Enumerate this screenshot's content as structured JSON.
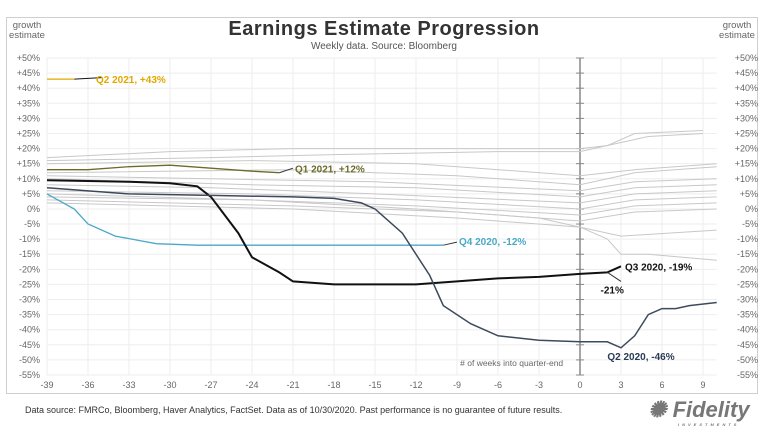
{
  "chart_data": {
    "type": "line",
    "title": "Earnings Estimate Progression",
    "subtitle": "Weekly data.  Source: Bloomberg",
    "ylabel": "growth estimate",
    "xlabel": "# of weeks into quarter-end",
    "xlim": [
      -39,
      10
    ],
    "ylim": [
      -55,
      50
    ],
    "xticks": [
      -39,
      -36,
      -33,
      -30,
      -27,
      -24,
      -21,
      -18,
      -15,
      -12,
      -9,
      -6,
      -3,
      0,
      3,
      6,
      9
    ],
    "yticks": [
      50,
      45,
      40,
      35,
      30,
      25,
      20,
      15,
      10,
      5,
      0,
      -5,
      -10,
      -15,
      -20,
      -25,
      -30,
      -35,
      -40,
      -45,
      -50,
      -55
    ],
    "grid": true,
    "colors": {
      "q2_2021": "#e0a800",
      "q1_2021": "#6b6b2a",
      "q4_2020": "#4aa8c8",
      "q3_2020": "#111111",
      "q2_2020": "#3d4a5c",
      "history": "#c8c8c8"
    },
    "history_series": [
      [
        [
          -39,
          17
        ],
        [
          -30,
          19
        ],
        [
          -21,
          20
        ],
        [
          -12,
          20
        ],
        [
          0,
          20
        ],
        [
          2,
          21
        ],
        [
          4,
          25
        ],
        [
          9,
          26
        ]
      ],
      [
        [
          -39,
          16
        ],
        [
          -27,
          17
        ],
        [
          -18,
          18
        ],
        [
          -6,
          19
        ],
        [
          0,
          19
        ],
        [
          3,
          22
        ],
        [
          5,
          24
        ],
        [
          9,
          25
        ]
      ],
      [
        [
          -39,
          15
        ],
        [
          -24,
          16
        ],
        [
          -12,
          15
        ],
        [
          0,
          11
        ],
        [
          4,
          13
        ],
        [
          10,
          15
        ]
      ],
      [
        [
          -39,
          12
        ],
        [
          -21,
          13
        ],
        [
          -9,
          11
        ],
        [
          0,
          8
        ],
        [
          4,
          12
        ],
        [
          10,
          14
        ]
      ],
      [
        [
          -39,
          11
        ],
        [
          -27,
          10
        ],
        [
          -15,
          9
        ],
        [
          0,
          6
        ],
        [
          4,
          9
        ],
        [
          10,
          10
        ]
      ],
      [
        [
          -39,
          10
        ],
        [
          -24,
          8
        ],
        [
          -12,
          7
        ],
        [
          0,
          4
        ],
        [
          4,
          7
        ],
        [
          10,
          8
        ]
      ],
      [
        [
          -39,
          8
        ],
        [
          -27,
          7
        ],
        [
          -15,
          5
        ],
        [
          0,
          2
        ],
        [
          4,
          5
        ],
        [
          10,
          6
        ]
      ],
      [
        [
          -39,
          6
        ],
        [
          -24,
          5
        ],
        [
          -12,
          3
        ],
        [
          0,
          0
        ],
        [
          4,
          3
        ],
        [
          10,
          4
        ]
      ],
      [
        [
          -39,
          4
        ],
        [
          -24,
          3
        ],
        [
          -12,
          1
        ],
        [
          0,
          -2
        ],
        [
          4,
          1
        ],
        [
          10,
          2
        ]
      ],
      [
        [
          -39,
          3
        ],
        [
          -21,
          1
        ],
        [
          -9,
          -1
        ],
        [
          0,
          -4
        ],
        [
          4,
          -1
        ],
        [
          10,
          0
        ]
      ],
      [
        [
          -39,
          2
        ],
        [
          -21,
          0
        ],
        [
          -9,
          -3
        ],
        [
          0,
          -6
        ],
        [
          3,
          -9
        ],
        [
          10,
          -7
        ]
      ],
      [
        [
          -39,
          5
        ],
        [
          -24,
          3
        ],
        [
          -12,
          0
        ],
        [
          -3,
          -3
        ],
        [
          0,
          -6
        ],
        [
          2,
          -10
        ],
        [
          3,
          -15
        ],
        [
          5,
          -15
        ],
        [
          10,
          -17
        ]
      ]
    ],
    "series": [
      {
        "name": "Q2 2021, +43%",
        "key": "q2_2021",
        "points": [
          [
            -39,
            43
          ],
          [
            -37,
            43
          ]
        ]
      },
      {
        "name": "Q1 2021, +12%",
        "key": "q1_2021",
        "points": [
          [
            -39,
            13
          ],
          [
            -36,
            13
          ],
          [
            -33,
            14
          ],
          [
            -30,
            14.5
          ],
          [
            -27,
            13.5
          ],
          [
            -24,
            12.5
          ],
          [
            -22,
            12
          ]
        ]
      },
      {
        "name": "Q4 2020, -12%",
        "key": "q4_2020",
        "points": [
          [
            -39,
            5
          ],
          [
            -37,
            0
          ],
          [
            -36,
            -5
          ],
          [
            -34,
            -9
          ],
          [
            -31,
            -11.5
          ],
          [
            -28,
            -12
          ],
          [
            -20,
            -12
          ],
          [
            -12,
            -12
          ],
          [
            -10,
            -12
          ]
        ]
      },
      {
        "name": "Q3 2020, -19%",
        "key": "q3_2020",
        "points": [
          [
            -39,
            9.5
          ],
          [
            -33,
            9
          ],
          [
            -30,
            8.5
          ],
          [
            -28,
            7.5
          ],
          [
            -27,
            4
          ],
          [
            -25,
            -8
          ],
          [
            -24,
            -16
          ],
          [
            -22,
            -21
          ],
          [
            -21,
            -24
          ],
          [
            -18,
            -25
          ],
          [
            -12,
            -25
          ],
          [
            -9,
            -24
          ],
          [
            -6,
            -23
          ],
          [
            -3,
            -22.5
          ],
          [
            0,
            -21.5
          ],
          [
            2,
            -21
          ],
          [
            3,
            -19
          ]
        ]
      },
      {
        "name": "Q2 2020, -46%",
        "key": "q2_2020",
        "points": [
          [
            -39,
            7
          ],
          [
            -33,
            5
          ],
          [
            -27,
            4.5
          ],
          [
            -21,
            4
          ],
          [
            -18,
            3.5
          ],
          [
            -16,
            2
          ],
          [
            -15,
            0
          ],
          [
            -13,
            -8
          ],
          [
            -11,
            -22
          ],
          [
            -10,
            -32
          ],
          [
            -8,
            -38
          ],
          [
            -6,
            -42
          ],
          [
            -3,
            -43.5
          ],
          [
            0,
            -44
          ],
          [
            2,
            -44
          ],
          [
            3,
            -46
          ],
          [
            4,
            -42
          ],
          [
            5,
            -35
          ],
          [
            6,
            -33
          ],
          [
            7,
            -33
          ],
          [
            8,
            -32
          ],
          [
            10,
            -31
          ]
        ]
      }
    ],
    "annotations": {
      "q3_2020_end": "-21%"
    }
  },
  "footer": "Data source: FMRCo, Bloomberg, Haver Analytics, FactSet. Data as of 10/30/2020. Past performance is no guarantee of future results.",
  "logo": {
    "text": "Fidelity",
    "sub": "INVESTMENTS"
  },
  "yaxis_label_left": "growth estimate",
  "yaxis_label_right": "growth estimate"
}
